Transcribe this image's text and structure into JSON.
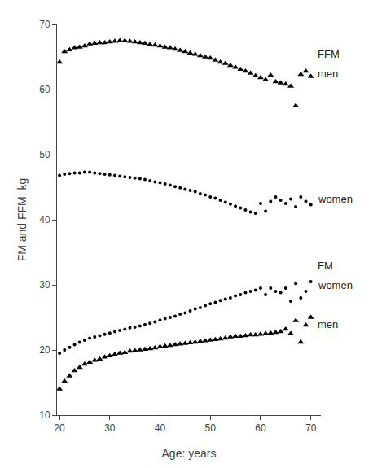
{
  "chart_data": {
    "type": "scatter",
    "xlabel": "Age: years",
    "ylabel": "FM and FFM: kg",
    "xlim": [
      19.5,
      72
    ],
    "ylim": [
      10,
      70
    ],
    "xticks": [
      20,
      30,
      40,
      50,
      60,
      70
    ],
    "yticks": [
      10,
      20,
      30,
      40,
      50,
      60,
      70
    ],
    "grid": false,
    "series": [
      {
        "marker": "triangle",
        "color": "#000000",
        "x": [
          20,
          21,
          22,
          23,
          24,
          25,
          26,
          27,
          28,
          29,
          30,
          31,
          32,
          33,
          34,
          35,
          36,
          37,
          38,
          39,
          40,
          41,
          42,
          43,
          44,
          45,
          46,
          47,
          48,
          49,
          50,
          51,
          52,
          53,
          54,
          55,
          56,
          57,
          58,
          59,
          60,
          61,
          62,
          63,
          64,
          65,
          66,
          67,
          68,
          69,
          70
        ],
        "values": [
          64.2,
          65.8,
          66.1,
          66.4,
          66.5,
          66.7,
          67.0,
          67.1,
          67.2,
          67.2,
          67.3,
          67.4,
          67.5,
          67.5,
          67.4,
          67.3,
          67.2,
          67.1,
          66.9,
          66.8,
          66.7,
          66.5,
          66.4,
          66.2,
          66.0,
          65.8,
          65.6,
          65.4,
          65.2,
          65.0,
          64.8,
          64.5,
          64.2,
          64.0,
          63.7,
          63.4,
          63.1,
          62.8,
          62.5,
          62.1,
          61.8,
          61.5,
          62.2,
          61.2,
          61.0,
          60.8,
          60.5,
          57.5,
          62.3,
          62.8,
          62.0
        ]
      },
      {
        "marker": "dot",
        "color": "#000000",
        "x": [
          20,
          21,
          22,
          23,
          24,
          25,
          26,
          27,
          28,
          29,
          30,
          31,
          32,
          33,
          34,
          35,
          36,
          37,
          38,
          39,
          40,
          41,
          42,
          43,
          44,
          45,
          46,
          47,
          48,
          49,
          50,
          51,
          52,
          53,
          54,
          55,
          56,
          57,
          58,
          59,
          60,
          61,
          62,
          63,
          64,
          65,
          66,
          67,
          68,
          69,
          70
        ],
        "values": [
          46.8,
          47.0,
          47.1,
          47.2,
          47.2,
          47.3,
          47.3,
          47.2,
          47.1,
          47.0,
          46.9,
          46.8,
          46.7,
          46.6,
          46.5,
          46.4,
          46.3,
          46.2,
          46.0,
          45.8,
          45.7,
          45.5,
          45.3,
          45.1,
          44.9,
          44.7,
          44.5,
          44.3,
          44.0,
          43.8,
          43.5,
          43.3,
          43.0,
          42.7,
          42.4,
          42.1,
          41.8,
          41.5,
          41.2,
          41.0,
          42.5,
          41.3,
          42.8,
          43.5,
          43.0,
          42.5,
          43.2,
          42.0,
          43.5,
          42.8,
          42.3
        ]
      },
      {
        "marker": "dot",
        "color": "#000000",
        "x": [
          20,
          21,
          22,
          23,
          24,
          25,
          26,
          27,
          28,
          29,
          30,
          31,
          32,
          33,
          34,
          35,
          36,
          37,
          38,
          39,
          40,
          41,
          42,
          43,
          44,
          45,
          46,
          47,
          48,
          49,
          50,
          51,
          52,
          53,
          54,
          55,
          56,
          57,
          58,
          59,
          60,
          61,
          62,
          63,
          64,
          65,
          66,
          67,
          68,
          69,
          70
        ],
        "values": [
          19.5,
          20.0,
          20.4,
          20.8,
          21.2,
          21.5,
          21.8,
          22.0,
          22.2,
          22.4,
          22.6,
          22.8,
          23.0,
          23.2,
          23.4,
          23.5,
          23.7,
          23.9,
          24.1,
          24.3,
          24.6,
          24.8,
          25.0,
          25.2,
          25.5,
          25.7,
          26.0,
          26.3,
          26.5,
          26.8,
          27.1,
          27.3,
          27.6,
          27.8,
          28.0,
          28.3,
          28.5,
          28.8,
          29.0,
          29.2,
          29.5,
          28.5,
          29.5,
          29.0,
          28.8,
          29.5,
          27.5,
          30.2,
          28.0,
          29.0,
          30.5
        ]
      },
      {
        "marker": "triangle",
        "color": "#000000",
        "x": [
          20,
          21,
          22,
          23,
          24,
          25,
          26,
          27,
          28,
          29,
          30,
          31,
          32,
          33,
          34,
          35,
          36,
          37,
          38,
          39,
          40,
          41,
          42,
          43,
          44,
          45,
          46,
          47,
          48,
          49,
          50,
          51,
          52,
          53,
          54,
          55,
          56,
          57,
          58,
          59,
          60,
          61,
          62,
          63,
          64,
          65,
          66,
          67,
          68,
          69,
          70
        ],
        "values": [
          14.0,
          15.2,
          16.0,
          16.8,
          17.3,
          17.8,
          18.1,
          18.4,
          18.6,
          18.9,
          19.1,
          19.3,
          19.5,
          19.6,
          19.8,
          19.9,
          20.0,
          20.1,
          20.2,
          20.3,
          20.5,
          20.6,
          20.7,
          20.8,
          20.9,
          21.0,
          21.1,
          21.2,
          21.3,
          21.4,
          21.5,
          21.6,
          21.7,
          21.8,
          22.0,
          22.1,
          22.1,
          22.2,
          22.3,
          22.3,
          22.4,
          22.5,
          22.6,
          22.7,
          22.8,
          23.2,
          22.5,
          24.5,
          21.2,
          23.8,
          25.0
        ]
      }
    ],
    "annotations": [
      {
        "text": "FFM",
        "x": 71.0,
        "y": 65.5
      },
      {
        "text": "men",
        "x": 71.0,
        "y": 62.5
      },
      {
        "text": "women",
        "x": 71.0,
        "y": 43.2
      },
      {
        "text": "FM",
        "x": 71.0,
        "y": 33.0
      },
      {
        "text": "women",
        "x": 71.0,
        "y": 30.0
      },
      {
        "text": "men",
        "x": 71.0,
        "y": 24.0
      }
    ]
  }
}
